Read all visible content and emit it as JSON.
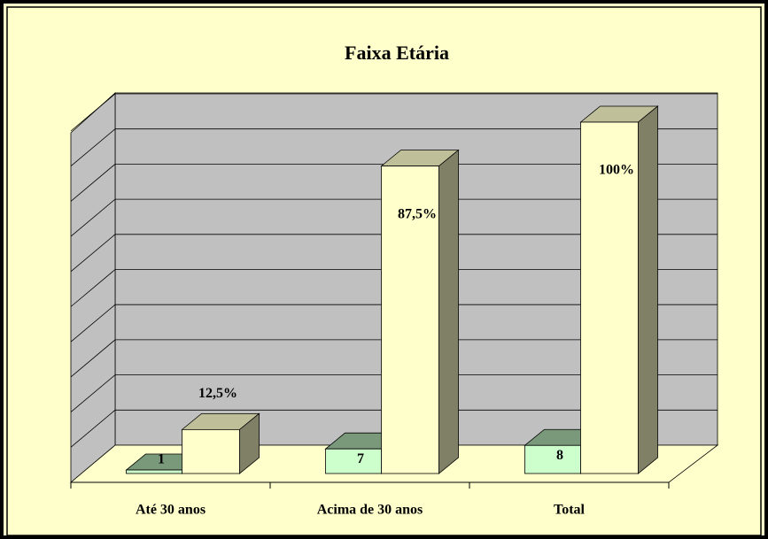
{
  "chart_data": {
    "type": "bar3d",
    "title": "Faixa Etária",
    "categories": [
      "Até 30 anos",
      "Acima de 30 anos",
      "Total"
    ],
    "series": [
      {
        "color": "#CCFFCC",
        "values": [
          1,
          7,
          8
        ]
      },
      {
        "color": "#FFFFCC",
        "values": [
          12.5,
          87.5,
          100
        ],
        "value_labels": [
          "12,5%",
          "87,5%",
          "100%"
        ]
      }
    ],
    "ylim": [
      0,
      100
    ],
    "yticks": [
      0,
      10,
      20,
      30,
      40,
      50,
      60,
      70,
      80,
      90,
      100
    ],
    "grid": true
  }
}
